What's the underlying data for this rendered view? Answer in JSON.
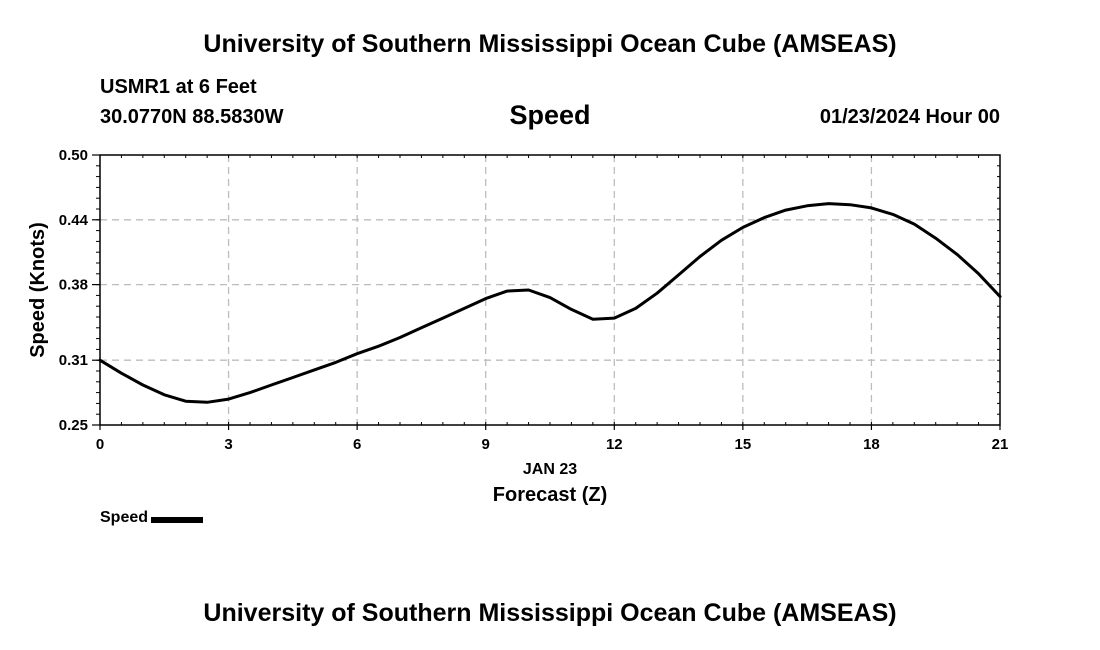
{
  "header": {
    "title": "University of Southern Mississippi Ocean Cube (AMSEAS)",
    "station": "USMR1 at 6 Feet",
    "coordinates": "30.0770N  88.5830W",
    "datetime": "01/23/2024 Hour 00"
  },
  "footer": {
    "title": "University of Southern Mississippi Ocean Cube (AMSEAS)"
  },
  "chart_data": {
    "type": "line",
    "title": "Speed",
    "xlabel": "Forecast (Z)",
    "xlabel_date": "JAN 23",
    "ylabel": "Speed (Knots)",
    "xlim": [
      0,
      21
    ],
    "ylim": [
      0.25,
      0.5
    ],
    "x_ticks": [
      0,
      3,
      6,
      9,
      12,
      15,
      18,
      21
    ],
    "y_ticks": [
      0.25,
      0.31,
      0.38,
      0.44,
      0.5
    ],
    "y_tick_labels": [
      "0.25",
      "0.31",
      "0.38",
      "0.44",
      "0.50"
    ],
    "grid": true,
    "legend_position": "bottom-left",
    "series": [
      {
        "name": "Speed",
        "color": "#000000",
        "x": [
          0,
          0.5,
          1,
          1.5,
          2,
          2.5,
          3,
          3.5,
          4,
          4.5,
          5,
          5.5,
          6,
          6.5,
          7,
          7.5,
          8,
          8.5,
          9,
          9.5,
          10,
          10.5,
          11,
          11.5,
          12,
          12.5,
          13,
          13.5,
          14,
          14.5,
          15,
          15.5,
          16,
          16.5,
          17,
          17.5,
          18,
          18.5,
          19,
          19.5,
          20,
          20.5,
          21
        ],
        "values": [
          0.31,
          0.298,
          0.287,
          0.278,
          0.272,
          0.271,
          0.274,
          0.28,
          0.287,
          0.294,
          0.301,
          0.308,
          0.316,
          0.323,
          0.331,
          0.34,
          0.349,
          0.358,
          0.367,
          0.374,
          0.375,
          0.368,
          0.357,
          0.348,
          0.349,
          0.358,
          0.372,
          0.389,
          0.406,
          0.421,
          0.433,
          0.442,
          0.449,
          0.453,
          0.455,
          0.454,
          0.451,
          0.445,
          0.436,
          0.423,
          0.408,
          0.39,
          0.369
        ]
      }
    ]
  }
}
